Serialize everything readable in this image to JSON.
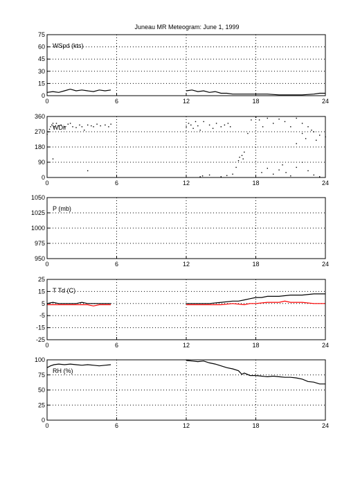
{
  "page": {
    "title": "Juneau MR Meteogram:      June  1, 1999"
  },
  "chart_data": [
    {
      "type": "line",
      "panel_label": "WSpd (kts)",
      "xlim": [
        0,
        24
      ],
      "ylim": [
        0,
        75
      ],
      "x_ticks": [
        0,
        6,
        12,
        18,
        24
      ],
      "y_ticks": [
        0,
        15,
        30,
        45,
        60,
        75
      ],
      "grid": true,
      "series": [
        {
          "color": "#000000",
          "segments": [
            [
              [
                0.0,
                4
              ],
              [
                0.5,
                5
              ],
              [
                1.0,
                4
              ],
              [
                1.5,
                6
              ],
              [
                2.0,
                8
              ],
              [
                2.5,
                6
              ],
              [
                3.0,
                7
              ],
              [
                3.5,
                6
              ],
              [
                4.0,
                5
              ],
              [
                4.5,
                7
              ],
              [
                5.0,
                6
              ],
              [
                5.5,
                7
              ]
            ],
            [
              [
                12.0,
                6
              ],
              [
                12.5,
                7
              ],
              [
                13.0,
                5
              ],
              [
                13.5,
                6
              ],
              [
                14.0,
                4
              ],
              [
                14.5,
                5
              ],
              [
                15.0,
                3
              ],
              [
                15.5,
                3
              ],
              [
                16.0,
                2
              ],
              [
                16.5,
                2
              ],
              [
                17.0,
                2
              ],
              [
                17.5,
                2
              ],
              [
                18.0,
                2
              ],
              [
                19.0,
                2
              ],
              [
                20.0,
                1
              ],
              [
                21.0,
                1
              ],
              [
                22.0,
                1
              ],
              [
                23.0,
                2
              ],
              [
                23.5,
                3
              ],
              [
                24.0,
                3
              ]
            ]
          ]
        }
      ]
    },
    {
      "type": "scatter",
      "panel_label": "WDir",
      "xlim": [
        0,
        24
      ],
      "ylim": [
        0,
        360
      ],
      "x_ticks": [
        0,
        6,
        12,
        18,
        24
      ],
      "y_ticks": [
        0,
        90,
        180,
        270,
        360
      ],
      "grid": true,
      "series": [
        {
          "color": "#000000",
          "points": [
            [
              0.0,
              255
            ],
            [
              0.1,
              270
            ],
            [
              0.2,
              285
            ],
            [
              0.3,
              300
            ],
            [
              0.4,
              310
            ],
            [
              0.5,
              320
            ],
            [
              0.6,
              300
            ],
            [
              0.8,
              320
            ],
            [
              1.0,
              305
            ],
            [
              1.2,
              310
            ],
            [
              1.5,
              300
            ],
            [
              1.8,
              315
            ],
            [
              2.0,
              320
            ],
            [
              2.2,
              300
            ],
            [
              2.5,
              295
            ],
            [
              2.8,
              310
            ],
            [
              3.0,
              300
            ],
            [
              3.2,
              280
            ],
            [
              3.5,
              310
            ],
            [
              3.8,
              305
            ],
            [
              4.0,
              300
            ],
            [
              4.3,
              315
            ],
            [
              4.6,
              305
            ],
            [
              5.0,
              310
            ],
            [
              5.3,
              300
            ],
            [
              5.5,
              315
            ],
            [
              3.5,
              40
            ],
            [
              0.5,
              110
            ],
            [
              12.0,
              300
            ],
            [
              12.2,
              320
            ],
            [
              12.4,
              310
            ],
            [
              12.6,
              290
            ],
            [
              12.8,
              330
            ],
            [
              13.0,
              305
            ],
            [
              13.2,
              280
            ],
            [
              13.5,
              330
            ],
            [
              14.0,
              310
            ],
            [
              14.3,
              290
            ],
            [
              14.6,
              320
            ],
            [
              15.0,
              300
            ],
            [
              15.3,
              310
            ],
            [
              15.6,
              320
            ],
            [
              15.8,
              300
            ],
            [
              13.2,
              5
            ],
            [
              13.4,
              10
            ],
            [
              14.0,
              15
            ],
            [
              15.0,
              5
            ],
            [
              15.5,
              12
            ],
            [
              16.0,
              20
            ],
            [
              16.3,
              60
            ],
            [
              16.5,
              100
            ],
            [
              16.6,
              120
            ],
            [
              16.8,
              130
            ],
            [
              16.9,
              110
            ],
            [
              17.0,
              150
            ],
            [
              17.3,
              260
            ],
            [
              17.6,
              340
            ],
            [
              18.0,
              355
            ],
            [
              18.3,
              340
            ],
            [
              18.6,
              300
            ],
            [
              19.0,
              350
            ],
            [
              19.5,
              320
            ],
            [
              20.0,
              345
            ],
            [
              20.5,
              330
            ],
            [
              21.0,
              300
            ],
            [
              21.5,
              350
            ],
            [
              22.0,
              320
            ],
            [
              22.5,
              300
            ],
            [
              23.0,
              270
            ],
            [
              23.5,
              250
            ],
            [
              24.0,
              240
            ],
            [
              18.5,
              30
            ],
            [
              19.0,
              55
            ],
            [
              19.5,
              20
            ],
            [
              20.0,
              45
            ],
            [
              20.3,
              75
            ],
            [
              20.6,
              30
            ],
            [
              21.0,
              10
            ],
            [
              21.5,
              60
            ],
            [
              22.0,
              90
            ],
            [
              22.5,
              40
            ],
            [
              23.0,
              15
            ],
            [
              23.5,
              5
            ],
            [
              21.5,
              200
            ],
            [
              22.0,
              260
            ],
            [
              22.3,
              230
            ],
            [
              22.8,
              280
            ],
            [
              23.2,
              220
            ]
          ]
        }
      ]
    },
    {
      "type": "line",
      "panel_label": "P (mb)",
      "xlim": [
        0,
        24
      ],
      "ylim": [
        950,
        1050
      ],
      "x_ticks": [
        0,
        6,
        12,
        18,
        24
      ],
      "y_ticks": [
        950,
        975,
        1000,
        1025,
        1050
      ],
      "grid": true,
      "series": []
    },
    {
      "type": "line",
      "panel_label": "T Td (C)",
      "xlim": [
        0,
        24
      ],
      "ylim": [
        -25,
        25
      ],
      "x_ticks": [
        0,
        6,
        12,
        18,
        24
      ],
      "y_ticks": [
        -25,
        -15,
        -5,
        5,
        15,
        25
      ],
      "grid": true,
      "series": [
        {
          "color": "#000000",
          "segments": [
            [
              [
                0.0,
                5
              ],
              [
                0.5,
                6
              ],
              [
                1.0,
                5
              ],
              [
                1.5,
                5
              ],
              [
                2.0,
                5
              ],
              [
                2.5,
                5
              ],
              [
                3.0,
                6
              ],
              [
                3.5,
                5
              ],
              [
                4.0,
                5
              ],
              [
                4.5,
                5
              ],
              [
                5.0,
                5
              ],
              [
                5.5,
                5
              ]
            ],
            [
              [
                12.0,
                5
              ],
              [
                13.0,
                5
              ],
              [
                14.0,
                5
              ],
              [
                15.0,
                6
              ],
              [
                16.0,
                7
              ],
              [
                16.5,
                7
              ],
              [
                17.0,
                8
              ],
              [
                17.5,
                9
              ],
              [
                18.0,
                10
              ],
              [
                18.5,
                10
              ],
              [
                19.0,
                11
              ],
              [
                20.0,
                11
              ],
              [
                21.0,
                12
              ],
              [
                22.0,
                12
              ],
              [
                23.0,
                13
              ],
              [
                23.5,
                13
              ],
              [
                24.0,
                13
              ]
            ]
          ]
        },
        {
          "color": "#ff0000",
          "segments": [
            [
              [
                0.0,
                4
              ],
              [
                0.5,
                4
              ],
              [
                1.0,
                4
              ],
              [
                1.5,
                4
              ],
              [
                2.0,
                4
              ],
              [
                2.5,
                4
              ],
              [
                3.0,
                4
              ],
              [
                3.5,
                4
              ],
              [
                4.0,
                3
              ],
              [
                4.5,
                4
              ],
              [
                5.0,
                4
              ],
              [
                5.5,
                4
              ]
            ],
            [
              [
                12.0,
                4
              ],
              [
                13.0,
                4
              ],
              [
                14.0,
                4
              ],
              [
                15.0,
                4
              ],
              [
                16.0,
                5
              ],
              [
                17.0,
                4
              ],
              [
                17.5,
                5
              ],
              [
                18.0,
                5
              ],
              [
                19.0,
                6
              ],
              [
                20.0,
                6
              ],
              [
                20.5,
                7
              ],
              [
                21.0,
                6
              ],
              [
                22.0,
                6
              ],
              [
                23.0,
                5
              ],
              [
                24.0,
                5
              ]
            ]
          ]
        }
      ]
    },
    {
      "type": "line",
      "panel_label": "RH (%)",
      "xlim": [
        0,
        24
      ],
      "ylim": [
        0,
        100
      ],
      "x_ticks": [
        0,
        6,
        12,
        18,
        24
      ],
      "y_ticks": [
        0,
        25,
        50,
        75,
        100
      ],
      "grid": true,
      "series": [
        {
          "color": "#000000",
          "segments": [
            [
              [
                0.0,
                87
              ],
              [
                0.3,
                90
              ],
              [
                0.6,
                92
              ],
              [
                1.0,
                93
              ],
              [
                1.5,
                92
              ],
              [
                2.0,
                93
              ],
              [
                2.5,
                92
              ],
              [
                3.0,
                91
              ],
              [
                3.5,
                92
              ],
              [
                4.0,
                91
              ],
              [
                4.5,
                90
              ],
              [
                5.0,
                91
              ],
              [
                5.5,
                92
              ]
            ],
            [
              [
                12.0,
                99
              ],
              [
                12.5,
                98
              ],
              [
                13.0,
                97
              ],
              [
                13.5,
                98
              ],
              [
                14.0,
                95
              ],
              [
                14.5,
                93
              ],
              [
                15.0,
                90
              ],
              [
                15.5,
                87
              ],
              [
                16.0,
                85
              ],
              [
                16.5,
                82
              ],
              [
                16.8,
                76
              ],
              [
                17.0,
                78
              ],
              [
                17.5,
                74
              ],
              [
                18.0,
                74
              ],
              [
                18.5,
                73
              ],
              [
                19.0,
                72
              ],
              [
                19.5,
                73
              ],
              [
                20.0,
                72
              ],
              [
                20.5,
                71
              ],
              [
                21.0,
                71
              ],
              [
                21.5,
                70
              ],
              [
                22.0,
                68
              ],
              [
                22.5,
                64
              ],
              [
                23.0,
                63
              ],
              [
                23.5,
                60
              ],
              [
                24.0,
                60
              ]
            ]
          ]
        }
      ]
    }
  ]
}
